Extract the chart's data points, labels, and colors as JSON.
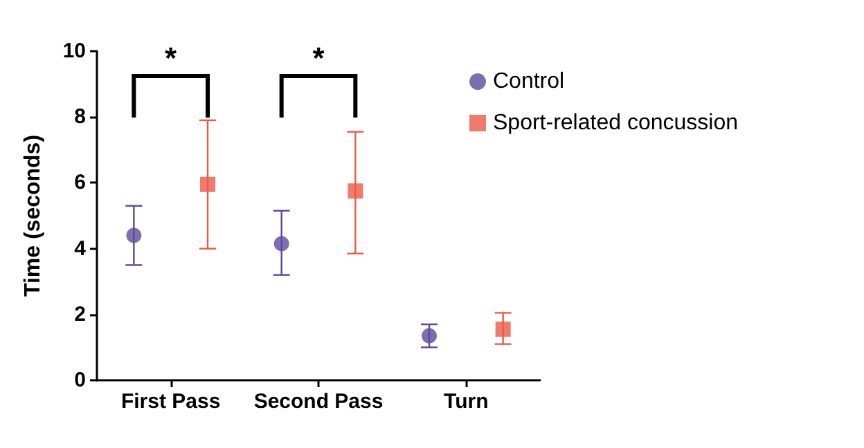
{
  "chart_data": {
    "type": "scatter",
    "ylabel": "Time (seconds)",
    "categories": [
      "First Pass",
      "Second Pass",
      "Turn"
    ],
    "series": [
      {
        "name": "Control",
        "color": "#5b4a9e",
        "marker": "circle",
        "values": [
          4.4,
          4.15,
          1.35
        ],
        "errors": [
          [
            3.5,
            5.3
          ],
          [
            3.2,
            5.15
          ],
          [
            1.0,
            1.7
          ]
        ]
      },
      {
        "name": "Sport-related concussion",
        "color": "#ee5a45",
        "marker": "square",
        "values": [
          5.95,
          5.75,
          1.55
        ],
        "errors": [
          [
            4.0,
            7.9
          ],
          [
            3.85,
            7.55
          ],
          [
            1.1,
            2.05
          ]
        ]
      }
    ],
    "ylim": [
      0,
      10
    ],
    "yticks": [
      0,
      2,
      4,
      6,
      8,
      10
    ],
    "grid": false,
    "legend": "top right",
    "annotations": [
      "*",
      "*"
    ]
  }
}
